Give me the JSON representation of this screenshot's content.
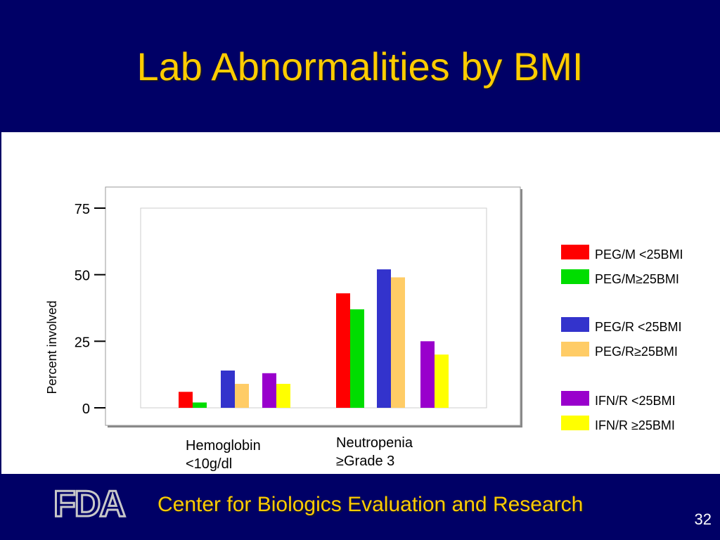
{
  "slide": {
    "title": "Lab Abnormalities by BMI",
    "footer": "Center for Biologics Evaluation and Research",
    "page_number": "32",
    "logo_text": "FDA"
  },
  "colors": {
    "background": "#000066",
    "title": "#ffcc00",
    "content_bg": "#ffffff"
  },
  "chart_data": {
    "type": "bar",
    "title": "",
    "xlabel": "",
    "ylabel": "Percent involved",
    "ylim": [
      0,
      75
    ],
    "yticks": [
      "0",
      "25",
      "50",
      "75"
    ],
    "categories": [
      "Hemoglobin\n<10g/dl",
      "Neutropenia\n≥Grade 3"
    ],
    "legend_position": "right",
    "grid": false,
    "series": [
      {
        "name": "PEG/M <25BMI",
        "color": "#ff0000",
        "values": [
          6,
          43
        ]
      },
      {
        "name": "PEG/M≥25BMI",
        "color": "#00dd00",
        "values": [
          2,
          37
        ]
      },
      {
        "name": "PEG/R <25BMI",
        "color": "#3333cc",
        "values": [
          14,
          52
        ]
      },
      {
        "name": "PEG/R≥25BMI",
        "color": "#ffcc66",
        "values": [
          9,
          49
        ]
      },
      {
        "name": "IFN/R <25BMI",
        "color": "#9900cc",
        "values": [
          13,
          25
        ]
      },
      {
        "name": "IFN/R ≥25BMI",
        "color": "#ffff00",
        "values": [
          9,
          20
        ]
      }
    ]
  }
}
